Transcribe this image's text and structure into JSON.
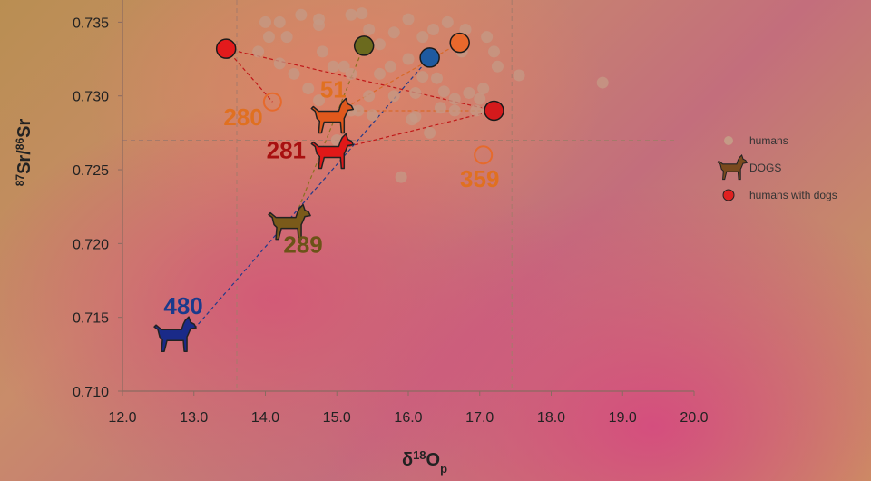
{
  "chart_data": {
    "type": "scatter",
    "xlabel": "δ18Op",
    "ylabel": "87Sr/86Sr",
    "xlim": [
      12.0,
      20.0
    ],
    "ylim": [
      0.71,
      0.7365
    ],
    "xticks": [
      "12.0",
      "13.0",
      "14.0",
      "15.0",
      "16.0",
      "17.0",
      "18.0",
      "19.0",
      "20.0"
    ],
    "yticks": [
      "0.710",
      "0.715",
      "0.720",
      "0.725",
      "0.730",
      "0.735"
    ],
    "ref_lines": {
      "x": [
        13.6,
        17.45
      ],
      "y": 0.727
    },
    "legend": [
      {
        "name": "humans",
        "color": "#c49a86",
        "marker": "circle"
      },
      {
        "name": "DOGS",
        "color": "#7a4a1e",
        "marker": "dog"
      },
      {
        "name": "humans with dogs",
        "color": "#e02020",
        "marker": "circle"
      }
    ],
    "humans": [
      [
        14.0,
        0.735
      ],
      [
        14.2,
        0.735
      ],
      [
        14.3,
        0.734
      ],
      [
        14.5,
        0.7355
      ],
      [
        14.75,
        0.7348
      ],
      [
        14.75,
        0.7352
      ],
      [
        15.2,
        0.7355
      ],
      [
        15.35,
        0.7356
      ],
      [
        15.45,
        0.7345
      ],
      [
        15.6,
        0.7335
      ],
      [
        15.8,
        0.7343
      ],
      [
        16.0,
        0.7352
      ],
      [
        16.2,
        0.734
      ],
      [
        16.35,
        0.7345
      ],
      [
        16.55,
        0.735
      ],
      [
        16.8,
        0.7345
      ],
      [
        17.1,
        0.734
      ],
      [
        17.2,
        0.733
      ],
      [
        17.25,
        0.732
      ],
      [
        17.55,
        0.7314
      ],
      [
        18.72,
        0.7309
      ],
      [
        13.9,
        0.733
      ],
      [
        14.05,
        0.734
      ],
      [
        14.2,
        0.7322
      ],
      [
        14.4,
        0.7315
      ],
      [
        14.6,
        0.7305
      ],
      [
        14.75,
        0.7297
      ],
      [
        14.95,
        0.732
      ],
      [
        15.1,
        0.732
      ],
      [
        15.2,
        0.7315
      ],
      [
        15.45,
        0.73
      ],
      [
        15.3,
        0.729
      ],
      [
        15.5,
        0.7287
      ],
      [
        15.6,
        0.7315
      ],
      [
        15.75,
        0.732
      ],
      [
        15.8,
        0.73
      ],
      [
        16.0,
        0.7325
      ],
      [
        16.1,
        0.7302
      ],
      [
        16.2,
        0.7313
      ],
      [
        16.05,
        0.7284
      ],
      [
        16.1,
        0.7286
      ],
      [
        16.4,
        0.7312
      ],
      [
        16.5,
        0.7303
      ],
      [
        16.65,
        0.7298
      ],
      [
        16.45,
        0.7292
      ],
      [
        16.65,
        0.729
      ],
      [
        16.85,
        0.7302
      ],
      [
        16.95,
        0.729
      ],
      [
        17.0,
        0.7298
      ],
      [
        17.1,
        0.729
      ],
      [
        17.25,
        0.729
      ],
      [
        16.3,
        0.7275
      ],
      [
        15.0,
        0.727
      ],
      [
        15.9,
        0.7245
      ],
      [
        14.8,
        0.733
      ],
      [
        15.2,
        0.729
      ],
      [
        17.05,
        0.7305
      ],
      [
        16.75,
        0.733
      ]
    ],
    "humans_with_dogs": [
      {
        "x": 13.45,
        "y": 0.7332,
        "color": "#e31a1c",
        "filled": true
      },
      {
        "x": 14.1,
        "y": 0.7296,
        "color": "#e66a2c",
        "filled": false
      },
      {
        "x": 15.38,
        "y": 0.7334,
        "color": "#6b6a1e",
        "filled": true
      },
      {
        "x": 16.3,
        "y": 0.7326,
        "color": "#1e5aa0",
        "filled": true
      },
      {
        "x": 16.72,
        "y": 0.7336,
        "color": "#e8682c",
        "filled": true
      },
      {
        "x": 17.2,
        "y": 0.729,
        "color": "#d41a1c",
        "filled": true
      },
      {
        "x": 17.05,
        "y": 0.726,
        "color": "#e66a2c",
        "filled": false
      }
    ],
    "dogs": [
      {
        "id": "51",
        "x": 14.95,
        "y": 0.7286,
        "color": "#e0581c",
        "label_color": "#e07020"
      },
      {
        "id": "280",
        "x": 14.35,
        "y": 0.7282,
        "color": "#e0581c",
        "label_color": "#e07020",
        "show_dog": false
      },
      {
        "id": "281",
        "x": 14.95,
        "y": 0.7262,
        "color": "#e01818",
        "label_color": "#a81010"
      },
      {
        "id": "289",
        "x": 14.35,
        "y": 0.7214,
        "color": "#7a5a1a",
        "label_color": "#6b5318"
      },
      {
        "id": "359",
        "x": 17.0,
        "y": 0.726,
        "color": "#e0581c",
        "label_color": "#e07020",
        "show_dog": false
      },
      {
        "id": "480",
        "x": 12.75,
        "y": 0.7138,
        "color": "#1a2a88",
        "label_color": "#1a3a8c"
      }
    ],
    "connections": [
      {
        "from": [
          13.45,
          0.7332
        ],
        "to": [
          14.1,
          0.7296
        ],
        "color": "#c01818"
      },
      {
        "from": [
          13.45,
          0.7332
        ],
        "to": [
          17.2,
          0.729
        ],
        "color": "#c01818"
      },
      {
        "from": [
          17.2,
          0.729
        ],
        "to": [
          15.1,
          0.7265
        ],
        "color": "#c01818"
      },
      {
        "from": [
          15.38,
          0.7334
        ],
        "to": [
          14.45,
          0.7222
        ],
        "color": "#8a7020"
      },
      {
        "from": [
          16.3,
          0.7326
        ],
        "to": [
          13.0,
          0.7142
        ],
        "color": "#223a8a"
      },
      {
        "from": [
          16.72,
          0.7336
        ],
        "to": [
          15.05,
          0.729
        ],
        "color": "#d86a2a"
      },
      {
        "from": [
          17.2,
          0.729
        ],
        "to": [
          15.05,
          0.729
        ],
        "color": "#d86a2a"
      }
    ]
  }
}
